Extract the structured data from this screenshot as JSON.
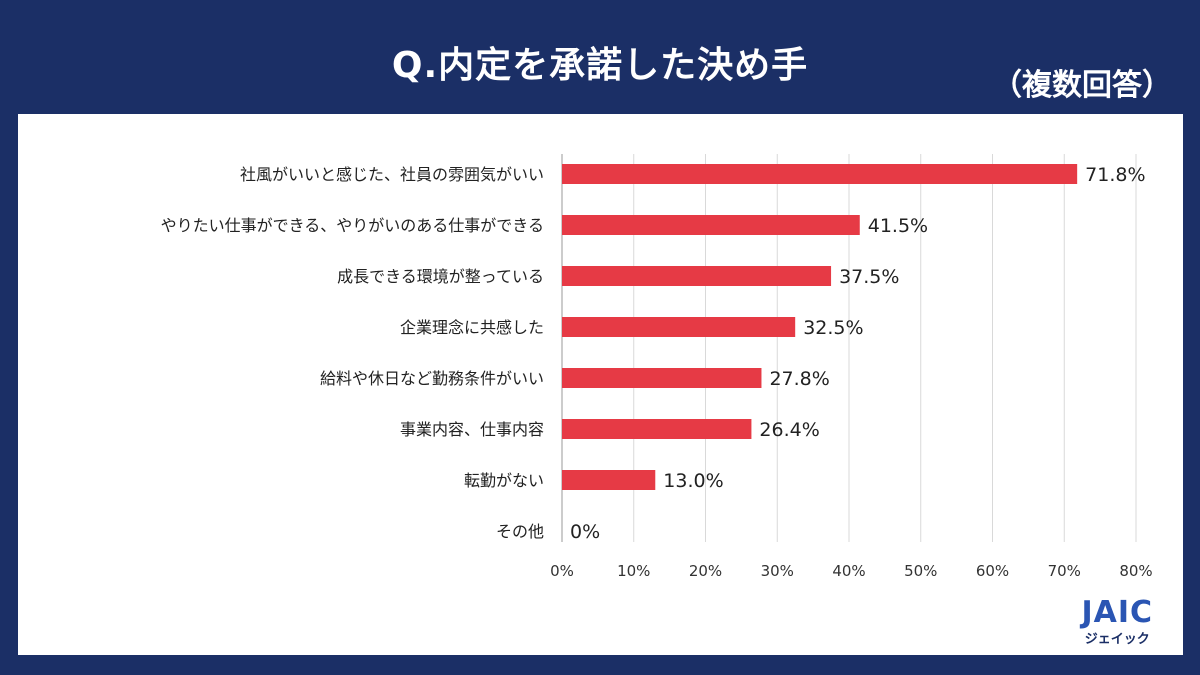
{
  "header": {
    "title": "Q.内定を承諾した決め手",
    "note": "（複数回答）"
  },
  "brand": {
    "logo": "JAIC",
    "kana": "ジェイック"
  },
  "colors": {
    "background": "#1b2f66",
    "bar": "#e63a45",
    "grid": "#d9d9d9"
  },
  "chart_data": {
    "type": "bar",
    "orientation": "horizontal",
    "categories": [
      "社風がいいと感じた、社員の雰囲気がいい",
      "やりたい仕事ができる、やりがいのある仕事ができる",
      "成長できる環境が整っている",
      "企業理念に共感した",
      "給料や休日など勤務条件がいい",
      "事業内容、仕事内容",
      "転勤がない",
      "その他"
    ],
    "values": [
      71.8,
      41.5,
      37.5,
      32.5,
      27.8,
      26.4,
      13.0,
      0
    ],
    "value_labels": [
      "71.8%",
      "41.5%",
      "37.5%",
      "32.5%",
      "27.8%",
      "26.4%",
      "13.0%",
      "0%"
    ],
    "xlim": [
      0,
      80
    ],
    "x_ticks": [
      0,
      10,
      20,
      30,
      40,
      50,
      60,
      70,
      80
    ],
    "x_tick_labels": [
      "0%",
      "10%",
      "20%",
      "30%",
      "40%",
      "50%",
      "60%",
      "70%",
      "80%"
    ],
    "grid": true
  }
}
